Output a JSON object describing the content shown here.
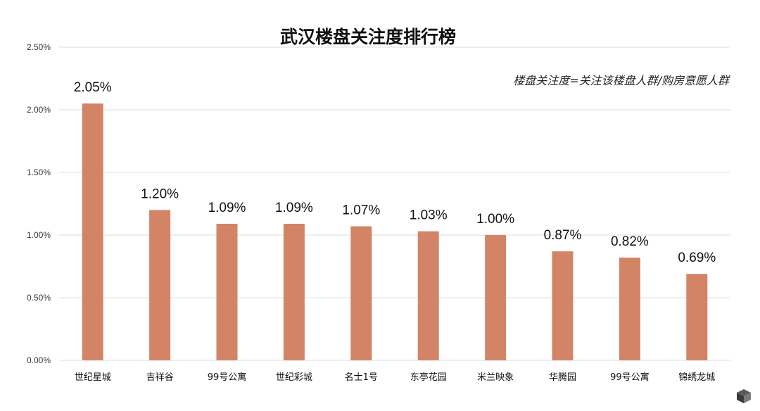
{
  "chart_data": {
    "type": "bar",
    "title": "武汉楼盘关注度排行榜",
    "annotation": "楼盘关注度=关注该楼盘人群/购房意愿人群",
    "categories": [
      "世纪星城",
      "吉祥谷",
      "99号公寓",
      "世纪彩城",
      "名士1号",
      "东亭花园",
      "米兰映象",
      "华腾园",
      "99号公寓",
      "锦绣龙城"
    ],
    "values": [
      2.05,
      1.2,
      1.09,
      1.09,
      1.07,
      1.03,
      1.0,
      0.87,
      0.82,
      0.69
    ],
    "data_labels": [
      "2.05%",
      "1.20%",
      "1.09%",
      "1.09%",
      "1.07%",
      "1.03%",
      "1.00%",
      "0.87%",
      "0.82%",
      "0.69%"
    ],
    "ylim": [
      0,
      2.5
    ],
    "y_ticks": [
      {
        "value": 0,
        "label": "0.00%"
      },
      {
        "value": 0.5,
        "label": "0.50%"
      },
      {
        "value": 1.0,
        "label": "1.00%"
      },
      {
        "value": 1.5,
        "label": "1.50%"
      },
      {
        "value": 2.0,
        "label": "2.00%"
      },
      {
        "value": 2.5,
        "label": "2.50%"
      }
    ],
    "xlabel": "",
    "ylabel": "",
    "grid": true,
    "bar_color": "#d48466"
  }
}
